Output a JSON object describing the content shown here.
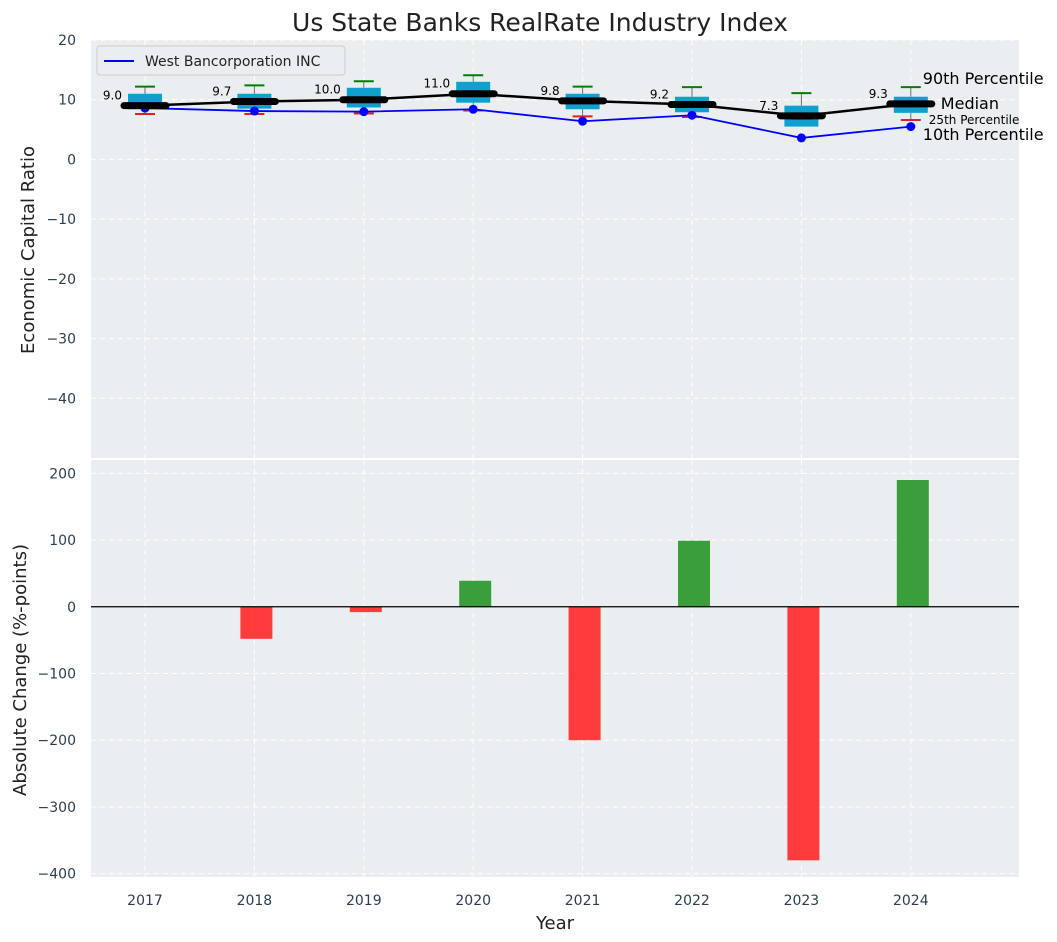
{
  "title": "Us State Banks RealRate Industry Index",
  "colors": {
    "panel_bg": "#EAEEF0",
    "grid": "#FFFFFF",
    "box_fill": "#0FA0CE",
    "median_line": "#000000",
    "company_line": "#0000FF",
    "whisker_top": "#008000",
    "whisker_bottom": "#E0201B",
    "bar_positive": "#3A9E3A",
    "bar_negative": "#FF3B3B",
    "percentile_25_label": "#0FA0CE"
  },
  "chart_data": [
    {
      "type": "box",
      "ylabel": "Economic Capital Ratio",
      "ylim": [
        -50,
        20
      ],
      "yticks": [
        20,
        10,
        0,
        -10,
        -20,
        -30,
        -40
      ],
      "categories": [
        "2017",
        "2018",
        "2019",
        "2020",
        "2021",
        "2022",
        "2023",
        "2024"
      ],
      "percentiles": {
        "p10": [
          7.6,
          7.6,
          7.7,
          8.2,
          7.2,
          7.1,
          6.8,
          6.6
        ],
        "p25": [
          8.4,
          8.5,
          8.7,
          9.5,
          8.4,
          7.9,
          5.5,
          7.8
        ],
        "median": [
          9.0,
          9.7,
          10.0,
          11.0,
          9.8,
          9.2,
          7.3,
          9.3
        ],
        "p75": [
          11.0,
          11.0,
          12.0,
          13.0,
          11.0,
          10.5,
          9.0,
          10.5
        ],
        "p90": [
          12.2,
          12.4,
          13.1,
          14.1,
          12.2,
          12.1,
          11.1,
          12.1
        ]
      },
      "median_labels": [
        "9.0",
        "9.7",
        "10.0",
        "11.0",
        "9.8",
        "9.2",
        "7.3",
        "9.3"
      ],
      "series": [
        {
          "name": "West Bancorporation INC",
          "values": [
            8.6,
            8.1,
            8.0,
            8.4,
            6.4,
            7.4,
            3.6,
            5.5
          ]
        }
      ],
      "legend": {
        "location": "upper-left",
        "entries": [
          "West Bancorporation INC"
        ]
      },
      "percentile_labels": {
        "p90": "90th Percentile",
        "median": "Median",
        "p25": "25th Percentile",
        "p10": "10th Percentile"
      }
    },
    {
      "type": "bar",
      "xlabel": "Year",
      "ylabel": "Absolute Change (%-points)",
      "ylim": [
        -405,
        220
      ],
      "yticks": [
        200,
        100,
        0,
        -100,
        -200,
        -300,
        -400
      ],
      "categories": [
        "2017",
        "2018",
        "2019",
        "2020",
        "2021",
        "2022",
        "2023",
        "2024"
      ],
      "values": [
        0,
        -48,
        -8,
        39,
        -200,
        99,
        -380,
        190
      ]
    }
  ]
}
